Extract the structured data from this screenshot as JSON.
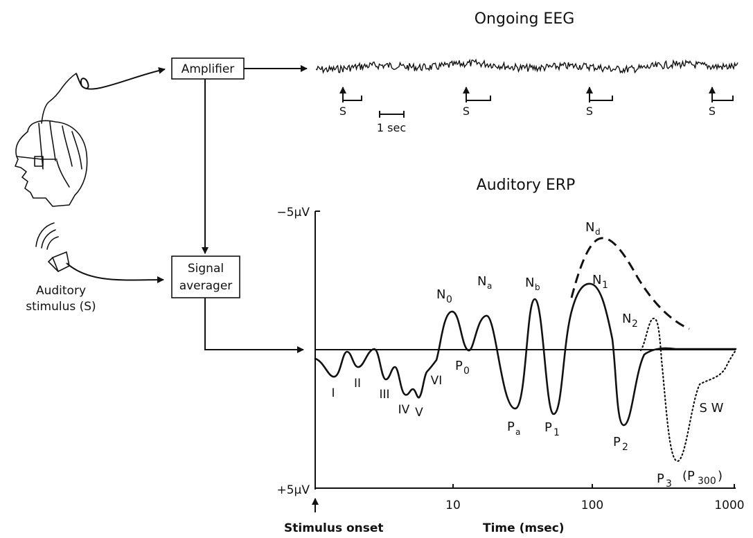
{
  "eeg": {
    "title": "Ongoing EEG",
    "stimulus_marker": "S",
    "scale_label": "1 sec"
  },
  "blocks": {
    "amplifier": "Amplifier",
    "signal_averager_line1": "Signal",
    "signal_averager_line2": "averager"
  },
  "stimulus": {
    "line1": "Auditory",
    "line2": "stimulus (S)"
  },
  "erp": {
    "title": "Auditory ERP",
    "y_top_label": "−5µV",
    "y_bottom_label": "+5µV",
    "x_label": "Time (msec)",
    "onset_label": "Stimulus onset",
    "x_ticks": [
      "10",
      "100",
      "1000"
    ],
    "components": {
      "I": "I",
      "II": "II",
      "III": "III",
      "IV": "IV",
      "V": "V",
      "VI": "VI",
      "N0": "N",
      "N0_sub": "0",
      "P0": "P",
      "P0_sub": "0",
      "Na": "N",
      "Na_sub": "a",
      "Pa": "P",
      "Pa_sub": "a",
      "Nb": "N",
      "Nb_sub": "b",
      "P1": "P",
      "P1_sub": "1",
      "N1": "N",
      "N1_sub": "1",
      "Nd": "N",
      "Nd_sub": "d",
      "P2": "P",
      "P2_sub": "2",
      "N2": "N",
      "N2_sub": "2",
      "P3": "P",
      "P3_sub": "3",
      "P300_open": "(P",
      "P300_sub": "300",
      "P300_close": ")",
      "SW": "S W"
    }
  }
}
